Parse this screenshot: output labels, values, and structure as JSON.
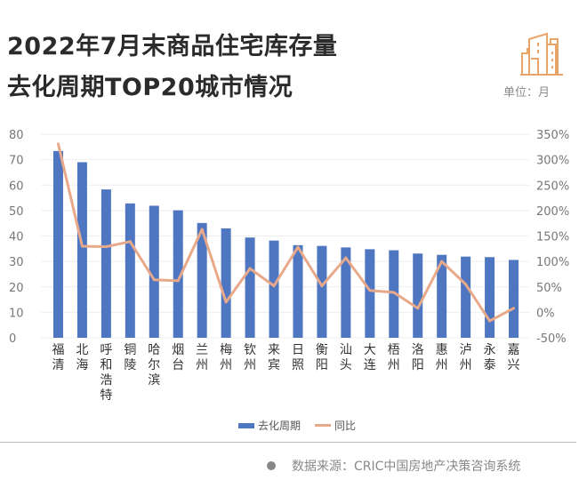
{
  "header": {
    "title_line1": "2022年7月末商品住宅库存量",
    "title_line2": "去化周期TOP20城市情况",
    "unit": "单位：月",
    "icon": "buildings-icon"
  },
  "footer": {
    "source": "数据来源：CRIC中国房地产决策咨询系统"
  },
  "colors": {
    "bar": "#4f76c0",
    "line": "#e8a98a"
  },
  "chart_data": {
    "type": "bar+line",
    "categories": [
      "福清",
      "北海",
      "呼和浩特",
      "铜陵",
      "哈尔滨",
      "烟台",
      "兰州",
      "梅州",
      "钦州",
      "来宾",
      "日照",
      "衡阳",
      "汕头",
      "大连",
      "梧州",
      "洛阳",
      "惠州",
      "泸州",
      "永泰",
      "嘉兴"
    ],
    "series": [
      {
        "name": "去化周期",
        "type": "bar",
        "axis": "left",
        "values": [
          73.4,
          69.0,
          58.3,
          52.8,
          51.9,
          50.1,
          45.1,
          43.0,
          39.4,
          38.2,
          36.4,
          36.1,
          35.5,
          34.8,
          34.4,
          33.1,
          32.6,
          31.9,
          31.7,
          30.6
        ]
      },
      {
        "name": "同比",
        "type": "line",
        "axis": "right",
        "unit": "%",
        "values": [
          331,
          130,
          129,
          139,
          64,
          62,
          163,
          20,
          86,
          52,
          128,
          52,
          107,
          43,
          39,
          8,
          100,
          55,
          -17,
          8
        ]
      }
    ],
    "left_axis": {
      "ylim": [
        0,
        80
      ],
      "ticks": [
        "0",
        "10",
        "20",
        "30",
        "40",
        "50",
        "60",
        "70",
        "80"
      ]
    },
    "right_axis": {
      "ylim": [
        -50,
        350
      ],
      "ticks": [
        "-50%",
        "0%",
        "50%",
        "100%",
        "150%",
        "200%",
        "250%",
        "300%",
        "350%"
      ]
    },
    "grid": true,
    "legend": "bottom"
  }
}
